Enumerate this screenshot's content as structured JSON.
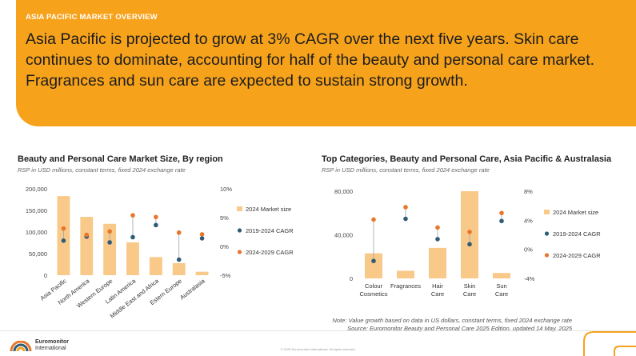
{
  "banner": {
    "eyebrow": "ASIA PACIFIC MARKET OVERVIEW",
    "headline": "Asia Pacific is projected to grow at 3% CAGR over the next five years. Skin care continues to dominate, accounting for half of the beauty and personal care market. Fragrances and sun care are expected to sustain strong growth."
  },
  "colors": {
    "banner": "#F7A21B",
    "bar": "#F9C98A",
    "cagr_hist": "#2E5C78",
    "cagr_proj": "#E8762B"
  },
  "chart_data": [
    {
      "type": "bar",
      "title": "Beauty and Personal Care Market Size, By region",
      "subtitle": "RSP in USD millions, constant terms, fixed 2024 exchange rate",
      "categories": [
        "Asia Pacific",
        "North America",
        "Western Europe",
        "Latin America",
        "Middle East and Africa",
        "Estern Europe",
        "Australasia"
      ],
      "ylim": [
        0,
        200000
      ],
      "yticks": [
        "200,000",
        "150,000",
        "100,000",
        "50,000",
        "0"
      ],
      "y2lim": [
        -5,
        10
      ],
      "y2ticks": [
        "10%",
        "5%",
        "0%",
        "-5%"
      ],
      "series": [
        {
          "name": "2024 Market size",
          "kind": "bar",
          "values": [
            183000,
            135000,
            119000,
            76000,
            42000,
            28000,
            8000
          ]
        },
        {
          "name": "2019-2024 CAGR",
          "kind": "dot",
          "axis": "secondary",
          "values": [
            1.0,
            1.7,
            0.7,
            1.6,
            3.7,
            -2.3,
            1.4
          ]
        },
        {
          "name": "2024-2029 CAGR",
          "kind": "dot",
          "axis": "secondary",
          "values": [
            3.1,
            2.0,
            2.6,
            5.4,
            5.1,
            2.4,
            2.1
          ]
        }
      ],
      "legend": "right"
    },
    {
      "type": "bar",
      "title": "Top Categories, Beauty and Personal Care, Asia Pacific & Australasia",
      "subtitle": "RSP in USD millions, constant terms, fixed 2024 exchange rate",
      "categories": [
        "Colour Cosmetics",
        "Fragrances",
        "Hair Care",
        "Skin Care",
        "Sun Care"
      ],
      "ylim": [
        0,
        80000
      ],
      "yticks": [
        "80,000",
        "40,000",
        "0"
      ],
      "y2lim": [
        -4,
        8
      ],
      "y2ticks": [
        "8%",
        "4%",
        "0%",
        "-4%"
      ],
      "series": [
        {
          "name": "2024 Market size",
          "kind": "bar",
          "values": [
            23000,
            7000,
            28000,
            80000,
            5000
          ]
        },
        {
          "name": "2019-2024 CAGR",
          "kind": "dot",
          "axis": "secondary",
          "values": [
            -1.6,
            4.2,
            1.4,
            0.7,
            3.9
          ]
        },
        {
          "name": "2024-2029 CAGR",
          "kind": "dot",
          "axis": "secondary",
          "values": [
            4.1,
            5.8,
            3.0,
            2.4,
            5.0
          ]
        }
      ],
      "legend": "right"
    }
  ],
  "notes": {
    "line1": "Note: Value growth based on data in US dollars, constant terms, fixed 2024 exchange rate",
    "line2": "Source: Euromonitor Beauty and Personal Care 2025 Edition, updated 14 May, 2025"
  },
  "footer": {
    "brand_line1": "Euromonitor",
    "brand_line2": "International",
    "copyright": "© 2025 Euromonitor International. All rights reserved."
  }
}
